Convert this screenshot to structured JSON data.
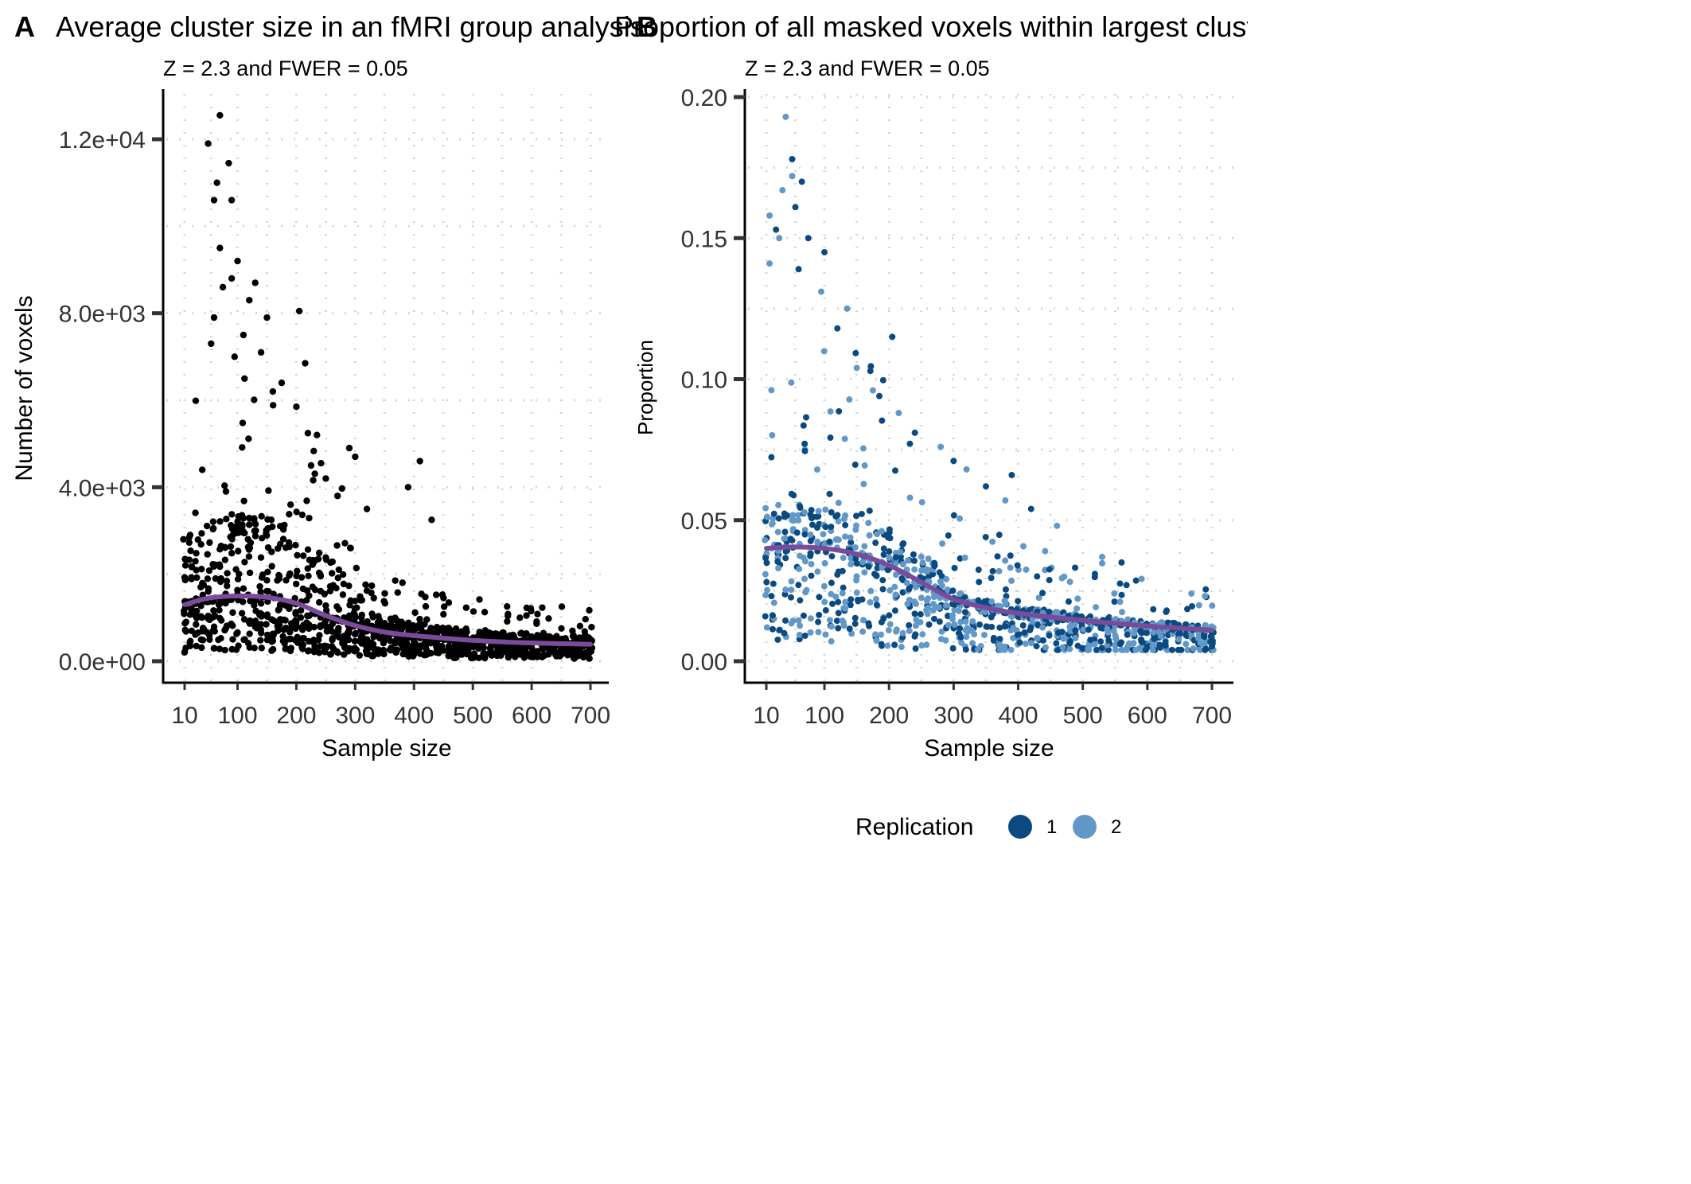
{
  "colors": {
    "points_black": "#000000",
    "replication_1": "#0b4a80",
    "replication_2": "#6298c8",
    "smooth_line": "#7b4b9b",
    "grid": "#d6d6d6",
    "axis": "#000000"
  },
  "legend": {
    "title": "Replication",
    "items": [
      {
        "label": "1",
        "color": "#0b4a80"
      },
      {
        "label": "2",
        "color": "#6298c8"
      }
    ]
  },
  "chart_data": [
    {
      "panel_letter": "A",
      "type": "scatter",
      "title": "Average cluster size in an fMRI group analysis",
      "subtitle": "Z = 2.3 and FWER = 0.05",
      "xlabel": "Sample size",
      "ylabel": "Number of voxels",
      "xlim": [
        10,
        700
      ],
      "ylim": [
        0,
        12600
      ],
      "x_ticks": [
        10,
        100,
        200,
        300,
        400,
        500,
        600,
        700
      ],
      "x_tick_labels": [
        "10",
        "100",
        "200",
        "300",
        "400",
        "500",
        "600",
        "700"
      ],
      "y_ticks": [
        0,
        4000,
        8000,
        12000
      ],
      "y_tick_labels": [
        "0.0e+00",
        "4.0e+03",
        "8.0e+03",
        "1.2e+04"
      ],
      "grid": "dotted",
      "point_color": "#000000",
      "series": [
        {
          "type": "line",
          "smooth": true,
          "color": "#7b4b9b",
          "x": [
            10,
            50,
            100,
            150,
            200,
            250,
            300,
            350,
            400,
            500,
            600,
            700
          ],
          "y": [
            1300,
            1450,
            1500,
            1470,
            1330,
            1050,
            820,
            670,
            590,
            480,
            420,
            390
          ]
        }
      ],
      "outliers": [
        {
          "x": 50,
          "y": 11900
        },
        {
          "x": 60,
          "y": 10600
        },
        {
          "x": 65,
          "y": 11000
        },
        {
          "x": 70,
          "y": 12550
        },
        {
          "x": 85,
          "y": 11450
        },
        {
          "x": 90,
          "y": 10600
        },
        {
          "x": 100,
          "y": 9200
        },
        {
          "x": 70,
          "y": 9500
        },
        {
          "x": 75,
          "y": 8600
        },
        {
          "x": 90,
          "y": 8800
        },
        {
          "x": 130,
          "y": 8700
        },
        {
          "x": 120,
          "y": 8300
        },
        {
          "x": 150,
          "y": 7900
        },
        {
          "x": 205,
          "y": 8050
        },
        {
          "x": 215,
          "y": 6850
        },
        {
          "x": 110,
          "y": 7500
        },
        {
          "x": 140,
          "y": 7100
        },
        {
          "x": 175,
          "y": 6400
        },
        {
          "x": 200,
          "y": 5850
        },
        {
          "x": 235,
          "y": 5200
        },
        {
          "x": 290,
          "y": 4900
        },
        {
          "x": 300,
          "y": 4700
        },
        {
          "x": 390,
          "y": 4000
        },
        {
          "x": 410,
          "y": 4600
        },
        {
          "x": 430,
          "y": 3250
        },
        {
          "x": 320,
          "y": 3500
        },
        {
          "x": 250,
          "y": 4200
        },
        {
          "x": 40,
          "y": 4400
        },
        {
          "x": 55,
          "y": 7300
        },
        {
          "x": 60,
          "y": 7900
        },
        {
          "x": 95,
          "y": 7000
        },
        {
          "x": 160,
          "y": 6200
        },
        {
          "x": 270,
          "y": 3800
        },
        {
          "x": 225,
          "y": 4500
        }
      ]
    },
    {
      "panel_letter": "B",
      "type": "scatter",
      "title": "Proportion of all masked voxels within largest cluster",
      "subtitle": "Z = 2.3 and FWER = 0.05",
      "xlabel": "Sample size",
      "ylabel": "Proportion",
      "xlim": [
        10,
        700
      ],
      "ylim": [
        0,
        0.2
      ],
      "x_ticks": [
        10,
        100,
        200,
        300,
        400,
        500,
        600,
        700
      ],
      "x_tick_labels": [
        "10",
        "100",
        "200",
        "300",
        "400",
        "500",
        "600",
        "700"
      ],
      "y_ticks": [
        0,
        0.05,
        0.1,
        0.15,
        0.2
      ],
      "y_tick_labels": [
        "0.00",
        "0.05",
        "0.10",
        "0.15",
        "0.20"
      ],
      "grid": "dotted",
      "series": [
        {
          "type": "line",
          "smooth": true,
          "color": "#7b4b9b",
          "x": [
            10,
            50,
            100,
            150,
            200,
            250,
            300,
            350,
            400,
            500,
            600,
            700
          ],
          "y": [
            0.04,
            0.0405,
            0.04,
            0.038,
            0.034,
            0.028,
            0.022,
            0.019,
            0.017,
            0.0145,
            0.0125,
            0.011
          ]
        }
      ],
      "outliers": [
        {
          "x": 40,
          "y": 0.193
        },
        {
          "x": 50,
          "y": 0.178
        },
        {
          "x": 50,
          "y": 0.172
        },
        {
          "x": 65,
          "y": 0.17
        },
        {
          "x": 35,
          "y": 0.167
        },
        {
          "x": 55,
          "y": 0.161
        },
        {
          "x": 15,
          "y": 0.158
        },
        {
          "x": 25,
          "y": 0.153
        },
        {
          "x": 30,
          "y": 0.15
        },
        {
          "x": 75,
          "y": 0.15
        },
        {
          "x": 15,
          "y": 0.141
        },
        {
          "x": 100,
          "y": 0.145
        },
        {
          "x": 95,
          "y": 0.131
        },
        {
          "x": 60,
          "y": 0.139
        },
        {
          "x": 135,
          "y": 0.125
        },
        {
          "x": 205,
          "y": 0.115
        },
        {
          "x": 150,
          "y": 0.104
        },
        {
          "x": 240,
          "y": 0.081
        },
        {
          "x": 280,
          "y": 0.076
        },
        {
          "x": 300,
          "y": 0.071
        },
        {
          "x": 320,
          "y": 0.068
        },
        {
          "x": 390,
          "y": 0.066
        },
        {
          "x": 380,
          "y": 0.057
        },
        {
          "x": 420,
          "y": 0.054
        },
        {
          "x": 530,
          "y": 0.037
        },
        {
          "x": 560,
          "y": 0.035
        },
        {
          "x": 460,
          "y": 0.048
        },
        {
          "x": 350,
          "y": 0.062
        },
        {
          "x": 175,
          "y": 0.096
        },
        {
          "x": 120,
          "y": 0.118
        },
        {
          "x": 215,
          "y": 0.088
        },
        {
          "x": 185,
          "y": 0.094
        }
      ]
    }
  ]
}
